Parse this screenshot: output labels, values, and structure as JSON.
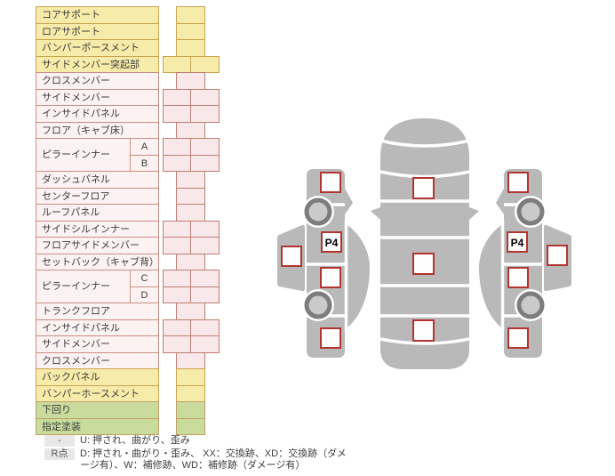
{
  "colors": {
    "accent_red": "#b23531",
    "body_gray": "#b9b9b9",
    "wheel_gray": "#7d7d7d",
    "row_yellow": "#f7eba9",
    "row_pink": "#fdf2f2",
    "cell_pink": "#f9e8ea",
    "row_green": "#cadc9d",
    "legend_gray": "#e8e8e8"
  },
  "parts_table": {
    "rows": [
      {
        "label": "コアサポート",
        "tone": "yellow",
        "cells": "single"
      },
      {
        "label": "ロアサポート",
        "tone": "yellow",
        "cells": "single"
      },
      {
        "label": "バンパーポースメント",
        "tone": "yellow",
        "cells": "single"
      },
      {
        "label": "サイドメンバー突起部",
        "tone": "yellow",
        "cells": "double"
      },
      {
        "label": "クロスメンバー",
        "tone": "pink",
        "cells": "single"
      },
      {
        "label": "サイドメンバー",
        "tone": "pink",
        "cells": "double"
      },
      {
        "label": "インサイドパネル",
        "tone": "pink",
        "cells": "double"
      },
      {
        "label": "フロア（キャブ床）",
        "tone": "pink",
        "cells": "single"
      },
      {
        "label": "ピラーインナー",
        "tone": "pink",
        "cells": "double",
        "sublabel": "A",
        "labelRowSpan": 2
      },
      {
        "label": "",
        "tone": "pink",
        "cells": "double",
        "sublabel": "B",
        "continuation": true
      },
      {
        "label": "ダッシュパネル",
        "tone": "pink",
        "cells": "single"
      },
      {
        "label": "センターフロア",
        "tone": "pink",
        "cells": "single"
      },
      {
        "label": "ルーフパネル",
        "tone": "pink",
        "cells": "single"
      },
      {
        "label": "サイドシルインナー",
        "tone": "pink",
        "cells": "double"
      },
      {
        "label": "フロアサイドメンバー",
        "tone": "pink",
        "cells": "double"
      },
      {
        "label": "セットバック（キャブ背）",
        "tone": "pink",
        "cells": "single"
      },
      {
        "label": "ピラーインナー",
        "tone": "pink",
        "cells": "double",
        "sublabel": "C",
        "labelRowSpan": 2
      },
      {
        "label": "",
        "tone": "pink",
        "cells": "double",
        "sublabel": "D",
        "continuation": true
      },
      {
        "label": "トランクフロア",
        "tone": "pink",
        "cells": "single"
      },
      {
        "label": "インサイドパネル",
        "tone": "pink",
        "cells": "double"
      },
      {
        "label": "サイドメンバー",
        "tone": "pink",
        "cells": "double"
      },
      {
        "label": "クロスメンバー",
        "tone": "pink",
        "cells": "single"
      },
      {
        "label": "バックパネル",
        "tone": "yellow",
        "cells": "single"
      },
      {
        "label": "バンパーホースメント",
        "tone": "yellow",
        "cells": "single"
      },
      {
        "label": "下回り",
        "tone": "green",
        "cells": "single"
      },
      {
        "label": "指定塗装",
        "tone": "green",
        "cells": "single"
      }
    ]
  },
  "legend": {
    "items": [
      {
        "marker": "-",
        "text": "U: 押され、曲がり、歪み"
      },
      {
        "marker": "R点",
        "text": "D: 押され・曲がり・歪み、 XX：交換跡、XD：交換跡（ダメージ有）、W：補修跡、WD：補修跡（ダメージ有）"
      }
    ]
  },
  "diagram": {
    "p4_left": "P4",
    "p4_right": "P4"
  }
}
